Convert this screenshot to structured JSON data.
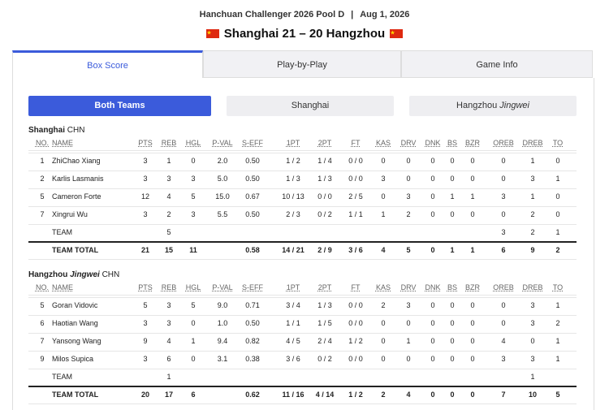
{
  "header": {
    "competition": "Hanchuan Challenger 2026 Pool D",
    "separator": "|",
    "date": "Aug 1, 2026",
    "score_line": "Shanghai 21 – 20 Hangzhou"
  },
  "tabs": [
    "Box Score",
    "Play-by-Play",
    "Game Info"
  ],
  "filters": [
    {
      "name": "Both Teams"
    },
    {
      "name": "Shanghai"
    },
    {
      "name": "Hangzhou",
      "nickname": "Jingwei"
    }
  ],
  "columns": [
    "NO.",
    "NAME",
    "PTS",
    "REB",
    "HGL",
    "P-VAL",
    "S-EFF",
    "1PT",
    "2PT",
    "FT",
    "KAS",
    "DRV",
    "DNK",
    "BS",
    "BZR",
    "OREB",
    "DREB",
    "TO"
  ],
  "teams": [
    {
      "name": "Shanghai",
      "country": "CHN",
      "rows": [
        [
          "1",
          "ZhiChao Xiang",
          "3",
          "1",
          "0",
          "2.0",
          "0.50",
          "1 / 2",
          "1 / 4",
          "0 / 0",
          "0",
          "0",
          "0",
          "0",
          "0",
          "0",
          "1",
          "0"
        ],
        [
          "2",
          "Karlis Lasmanis",
          "3",
          "3",
          "3",
          "5.0",
          "0.50",
          "1 / 3",
          "1 / 3",
          "0 / 0",
          "3",
          "0",
          "0",
          "0",
          "0",
          "0",
          "3",
          "1"
        ],
        [
          "5",
          "Cameron Forte",
          "12",
          "4",
          "5",
          "15.0",
          "0.67",
          "10 / 13",
          "0 / 0",
          "2 / 5",
          "0",
          "3",
          "0",
          "1",
          "1",
          "3",
          "1",
          "0"
        ],
        [
          "7",
          "Xingrui Wu",
          "3",
          "2",
          "3",
          "5.5",
          "0.50",
          "2 / 3",
          "0 / 2",
          "1 / 1",
          "1",
          "2",
          "0",
          "0",
          "0",
          "0",
          "2",
          "0"
        ],
        [
          null,
          "TEAM",
          null,
          "5",
          null,
          null,
          null,
          null,
          null,
          null,
          null,
          null,
          null,
          null,
          null,
          "3",
          "2",
          "1"
        ],
        [
          null,
          "TEAM TOTAL",
          "21",
          "15",
          "11",
          null,
          "0.58",
          "14 / 21",
          "2 / 9",
          "3 / 6",
          "4",
          "5",
          "0",
          "1",
          "1",
          "6",
          "9",
          "2"
        ]
      ]
    },
    {
      "name": "Hangzhou",
      "nickname": "Jingwei",
      "country": "CHN",
      "rows": [
        [
          "5",
          "Goran Vidovic",
          "5",
          "3",
          "5",
          "9.0",
          "0.71",
          "3 / 4",
          "1 / 3",
          "0 / 0",
          "2",
          "3",
          "0",
          "0",
          "0",
          "0",
          "3",
          "1"
        ],
        [
          "6",
          "Haotian Wang",
          "3",
          "3",
          "0",
          "1.0",
          "0.50",
          "1 / 1",
          "1 / 5",
          "0 / 0",
          "0",
          "0",
          "0",
          "0",
          "0",
          "0",
          "3",
          "2"
        ],
        [
          "7",
          "Yansong Wang",
          "9",
          "4",
          "1",
          "9.4",
          "0.82",
          "4 / 5",
          "2 / 4",
          "1 / 2",
          "0",
          "1",
          "0",
          "0",
          "0",
          "4",
          "0",
          "1"
        ],
        [
          "9",
          "Milos Supica",
          "3",
          "6",
          "0",
          "3.1",
          "0.38",
          "3 / 6",
          "0 / 2",
          "0 / 0",
          "0",
          "0",
          "0",
          "0",
          "0",
          "3",
          "3",
          "1"
        ],
        [
          null,
          "TEAM",
          null,
          "1",
          null,
          null,
          null,
          null,
          null,
          null,
          null,
          null,
          null,
          null,
          null,
          null,
          "1",
          null
        ],
        [
          null,
          "TEAM TOTAL",
          "20",
          "17",
          "6",
          null,
          "0.62",
          "11 / 16",
          "4 / 14",
          "1 / 2",
          "2",
          "4",
          "0",
          "0",
          "0",
          "7",
          "10",
          "5"
        ]
      ]
    }
  ]
}
